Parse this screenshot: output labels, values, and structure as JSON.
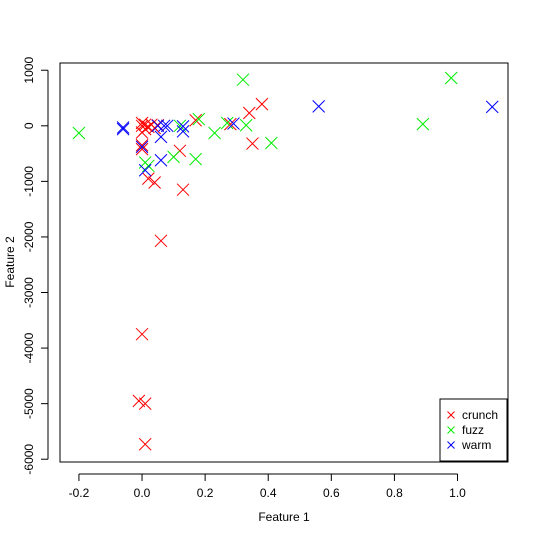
{
  "chart_data": {
    "type": "scatter",
    "xlabel": "Feature 1",
    "ylabel": "Feature 2",
    "xlim": [
      -0.26,
      1.16
    ],
    "ylim": [
      -6050,
      1130
    ],
    "xticks": [
      -0.2,
      0.0,
      0.2,
      0.4,
      0.6,
      0.8,
      1.0
    ],
    "xtick_labels": [
      "-0.2",
      "0.0",
      "0.2",
      "0.4",
      "0.6",
      "0.8",
      "1.0"
    ],
    "yticks": [
      -6000,
      -5000,
      -4000,
      -3000,
      -2000,
      -1000,
      0,
      1000
    ],
    "ytick_labels": [
      "-6000",
      "-5000",
      "-4000",
      "-3000",
      "-2000",
      "-1000",
      "0",
      "1000"
    ],
    "grid": false,
    "legend": {
      "position": "bottom-right"
    },
    "marker": "x",
    "series": [
      {
        "name": "crunch",
        "color": "#ff0000",
        "points": [
          [
            0.0,
            50
          ],
          [
            0.01,
            20
          ],
          [
            0.02,
            -20
          ],
          [
            0.0,
            -120
          ],
          [
            0.03,
            20
          ],
          [
            0.04,
            -40
          ],
          [
            0.05,
            10
          ],
          [
            0.0,
            0
          ],
          [
            0.01,
            -60
          ],
          [
            0.0,
            -350
          ],
          [
            0.0,
            -420
          ],
          [
            0.02,
            -950
          ],
          [
            0.04,
            -1020
          ],
          [
            0.12,
            -450
          ],
          [
            0.13,
            -1150
          ],
          [
            0.06,
            -2070
          ],
          [
            0.0,
            -3750
          ],
          [
            -0.01,
            -4950
          ],
          [
            0.01,
            -5000
          ],
          [
            0.01,
            -5730
          ],
          [
            0.17,
            100
          ],
          [
            0.28,
            30
          ],
          [
            0.34,
            230
          ],
          [
            0.35,
            -320
          ],
          [
            0.38,
            390
          ]
        ]
      },
      {
        "name": "fuzz",
        "color": "#00ee00",
        "points": [
          [
            -0.2,
            -130
          ],
          [
            0.01,
            -660
          ],
          [
            0.02,
            -720
          ],
          [
            0.1,
            -560
          ],
          [
            0.17,
            -600
          ],
          [
            0.12,
            0
          ],
          [
            0.18,
            120
          ],
          [
            0.23,
            -130
          ],
          [
            0.27,
            50
          ],
          [
            0.32,
            830
          ],
          [
            0.33,
            10
          ],
          [
            0.41,
            -310
          ],
          [
            0.89,
            30
          ],
          [
            0.98,
            860
          ]
        ]
      },
      {
        "name": "warm",
        "color": "#0000ff",
        "points": [
          [
            -0.06,
            -30
          ],
          [
            -0.06,
            -60
          ],
          [
            0.0,
            -380
          ],
          [
            0.01,
            -800
          ],
          [
            0.05,
            0
          ],
          [
            0.06,
            -200
          ],
          [
            0.06,
            -620
          ],
          [
            0.07,
            0
          ],
          [
            0.08,
            0
          ],
          [
            0.13,
            -10
          ],
          [
            0.13,
            -100
          ],
          [
            0.29,
            40
          ],
          [
            0.56,
            350
          ],
          [
            1.11,
            340
          ]
        ]
      }
    ]
  }
}
